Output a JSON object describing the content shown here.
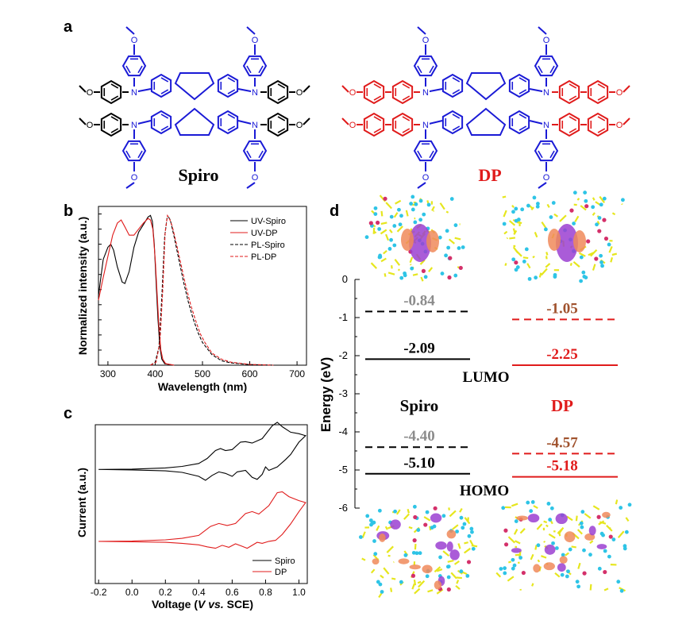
{
  "panel_labels": {
    "a": "a",
    "b": "b",
    "c": "c",
    "d": "d"
  },
  "molecules": {
    "spiro_name": "Spiro",
    "dp_name": "DP",
    "spiro_color": "#1a1ad6",
    "dp_color": "#e01b1b",
    "atom_O": "O",
    "atom_N": "N"
  },
  "chart_data": [
    {
      "id": "b",
      "type": "line",
      "xlabel": "Wavelength (nm)",
      "ylabel": "Normalized intensity (a.u.)",
      "xlim": [
        280,
        720
      ],
      "ylim": [
        0,
        1.05
      ],
      "xticks": [
        300,
        400,
        500,
        600,
        700
      ],
      "legend_position": "top-right",
      "series": [
        {
          "name": "UV-Spiro",
          "color": "#000000",
          "dash": "solid",
          "points": [
            [
              280,
              0.46
            ],
            [
              290,
              0.7
            ],
            [
              300,
              0.78
            ],
            [
              306,
              0.8
            ],
            [
              312,
              0.76
            ],
            [
              320,
              0.65
            ],
            [
              330,
              0.55
            ],
            [
              336,
              0.54
            ],
            [
              345,
              0.62
            ],
            [
              355,
              0.78
            ],
            [
              365,
              0.88
            ],
            [
              375,
              0.93
            ],
            [
              385,
              0.98
            ],
            [
              390,
              0.99
            ],
            [
              394,
              0.95
            ],
            [
              398,
              0.8
            ],
            [
              402,
              0.55
            ],
            [
              406,
              0.3
            ],
            [
              410,
              0.12
            ],
            [
              414,
              0.04
            ],
            [
              420,
              0.01
            ],
            [
              440,
              0
            ]
          ]
        },
        {
          "name": "UV-DP",
          "color": "#e01b1b",
          "dash": "solid",
          "points": [
            [
              280,
              0.43
            ],
            [
              290,
              0.58
            ],
            [
              300,
              0.72
            ],
            [
              310,
              0.86
            ],
            [
              320,
              0.94
            ],
            [
              328,
              0.96
            ],
            [
              335,
              0.92
            ],
            [
              345,
              0.86
            ],
            [
              355,
              0.86
            ],
            [
              365,
              0.9
            ],
            [
              375,
              0.94
            ],
            [
              385,
              0.97
            ],
            [
              390,
              0.96
            ],
            [
              395,
              0.9
            ],
            [
              400,
              0.7
            ],
            [
              404,
              0.48
            ],
            [
              408,
              0.25
            ],
            [
              412,
              0.1
            ],
            [
              416,
              0.04
            ],
            [
              422,
              0.01
            ],
            [
              440,
              0
            ]
          ]
        },
        {
          "name": "PL-Spiro",
          "color": "#000000",
          "dash": "dashed",
          "points": [
            [
              390,
              0
            ],
            [
              400,
              0.02
            ],
            [
              408,
              0.12
            ],
            [
              414,
              0.45
            ],
            [
              420,
              0.85
            ],
            [
              425,
              0.97
            ],
            [
              428,
              0.98
            ],
            [
              432,
              0.96
            ],
            [
              440,
              0.85
            ],
            [
              450,
              0.7
            ],
            [
              460,
              0.55
            ],
            [
              470,
              0.42
            ],
            [
              480,
              0.31
            ],
            [
              490,
              0.22
            ],
            [
              500,
              0.15
            ],
            [
              520,
              0.07
            ],
            [
              540,
              0.03
            ],
            [
              560,
              0.015
            ],
            [
              600,
              0.004
            ],
            [
              650,
              0
            ]
          ]
        },
        {
          "name": "PL-DP",
          "color": "#e01b1b",
          "dash": "dashed",
          "points": [
            [
              390,
              0
            ],
            [
              402,
              0.02
            ],
            [
              410,
              0.15
            ],
            [
              416,
              0.5
            ],
            [
              421,
              0.88
            ],
            [
              426,
              0.99
            ],
            [
              430,
              0.97
            ],
            [
              436,
              0.92
            ],
            [
              445,
              0.8
            ],
            [
              455,
              0.66
            ],
            [
              465,
              0.52
            ],
            [
              475,
              0.4
            ],
            [
              485,
              0.3
            ],
            [
              495,
              0.21
            ],
            [
              505,
              0.15
            ],
            [
              520,
              0.08
            ],
            [
              540,
              0.04
            ],
            [
              560,
              0.02
            ],
            [
              600,
              0.005
            ],
            [
              650,
              0
            ]
          ]
        }
      ]
    },
    {
      "id": "c",
      "type": "line",
      "xlabel_parts": {
        "pre": "Voltage (",
        "v": "V",
        "mid": " ",
        "vs": "vs.",
        "post": " SCE)"
      },
      "ylabel": "Current (a.u.)",
      "xlim": [
        -0.22,
        1.05
      ],
      "ylim": [
        -1.6,
        1.6
      ],
      "xticks": [
        -0.2,
        0.0,
        0.2,
        0.4,
        0.6,
        0.8,
        1.0
      ],
      "xtick_labels": [
        "-0.2",
        "0.0",
        "0.2",
        "0.4",
        "0.6",
        "0.8",
        "1.0"
      ],
      "legend_position": "bottom-right",
      "series": [
        {
          "name": "Spiro",
          "color": "#000000",
          "offset": 0.7,
          "points": [
            [
              -0.2,
              0
            ],
            [
              0.0,
              0.005
            ],
            [
              0.2,
              0.03
            ],
            [
              0.3,
              0.06
            ],
            [
              0.4,
              0.12
            ],
            [
              0.45,
              0.22
            ],
            [
              0.5,
              0.38
            ],
            [
              0.53,
              0.42
            ],
            [
              0.56,
              0.38
            ],
            [
              0.6,
              0.4
            ],
            [
              0.65,
              0.55
            ],
            [
              0.68,
              0.56
            ],
            [
              0.72,
              0.53
            ],
            [
              0.78,
              0.62
            ],
            [
              0.84,
              0.88
            ],
            [
              0.87,
              0.95
            ],
            [
              0.9,
              0.86
            ],
            [
              0.95,
              0.75
            ],
            [
              1.0,
              0.72
            ],
            [
              1.04,
              0.68
            ],
            [
              1.0,
              0.55
            ],
            [
              0.95,
              0.3
            ],
            [
              0.92,
              0.2
            ],
            [
              0.87,
              0.05
            ],
            [
              0.82,
              -0.02
            ],
            [
              0.8,
              0.05
            ],
            [
              0.78,
              -0.1
            ],
            [
              0.75,
              -0.2
            ],
            [
              0.72,
              -0.16
            ],
            [
              0.68,
              -0.02
            ],
            [
              0.63,
              -0.05
            ],
            [
              0.6,
              -0.14
            ],
            [
              0.56,
              -0.08
            ],
            [
              0.52,
              -0.05
            ],
            [
              0.48,
              -0.12
            ],
            [
              0.44,
              -0.22
            ],
            [
              0.4,
              -0.14
            ],
            [
              0.3,
              -0.06
            ],
            [
              0.2,
              -0.03
            ],
            [
              0.0,
              -0.01
            ],
            [
              -0.2,
              0
            ]
          ]
        },
        {
          "name": "DP",
          "color": "#e01b1b",
          "offset": -0.75,
          "points": [
            [
              -0.2,
              0
            ],
            [
              0.0,
              0.005
            ],
            [
              0.2,
              0.03
            ],
            [
              0.3,
              0.06
            ],
            [
              0.4,
              0.12
            ],
            [
              0.47,
              0.3
            ],
            [
              0.52,
              0.36
            ],
            [
              0.57,
              0.32
            ],
            [
              0.62,
              0.36
            ],
            [
              0.68,
              0.56
            ],
            [
              0.72,
              0.6
            ],
            [
              0.76,
              0.55
            ],
            [
              0.82,
              0.72
            ],
            [
              0.87,
              0.98
            ],
            [
              0.9,
              1.0
            ],
            [
              0.94,
              0.9
            ],
            [
              1.0,
              0.82
            ],
            [
              1.04,
              0.78
            ],
            [
              1.0,
              0.6
            ],
            [
              0.95,
              0.35
            ],
            [
              0.9,
              0.14
            ],
            [
              0.86,
              0.02
            ],
            [
              0.82,
              0.0
            ],
            [
              0.78,
              -0.04
            ],
            [
              0.75,
              -0.02
            ],
            [
              0.72,
              -0.08
            ],
            [
              0.69,
              -0.14
            ],
            [
              0.66,
              -0.1
            ],
            [
              0.62,
              -0.05
            ],
            [
              0.58,
              -0.12
            ],
            [
              0.54,
              -0.08
            ],
            [
              0.5,
              -0.14
            ],
            [
              0.45,
              -0.11
            ],
            [
              0.4,
              -0.07
            ],
            [
              0.3,
              -0.04
            ],
            [
              0.2,
              -0.02
            ],
            [
              0.0,
              -0.01
            ],
            [
              -0.2,
              0
            ]
          ]
        }
      ]
    },
    {
      "id": "d",
      "type": "energy-level",
      "ylabel": "Energy (eV)",
      "ylim": [
        -6.2,
        0.2
      ],
      "yticks": [
        0,
        -1,
        -2,
        -3,
        -4,
        -5,
        -6
      ],
      "columns": [
        {
          "name": "Spiro",
          "name_color": "#000000",
          "levels": [
            {
              "value": -0.84,
              "label": "-0.84",
              "dash": "dashed",
              "line_color": "#000000",
              "label_color": "#8c8c8c"
            },
            {
              "value": -2.09,
              "label": "-2.09",
              "dash": "solid",
              "line_color": "#000000",
              "label_color": "#000000"
            },
            {
              "value": -4.4,
              "label": "-4.40",
              "dash": "dashed",
              "line_color": "#000000",
              "label_color": "#8c8c8c"
            },
            {
              "value": -5.1,
              "label": "-5.10",
              "dash": "solid",
              "line_color": "#000000",
              "label_color": "#000000"
            }
          ]
        },
        {
          "name": "DP",
          "name_color": "#e01b1b",
          "levels": [
            {
              "value": -1.05,
              "label": "-1.05",
              "dash": "dashed",
              "line_color": "#e01b1b",
              "label_color": "#a0522d"
            },
            {
              "value": -2.25,
              "label": "-2.25",
              "dash": "solid",
              "line_color": "#e01b1b",
              "label_color": "#e01b1b"
            },
            {
              "value": -4.57,
              "label": "-4.57",
              "dash": "dashed",
              "line_color": "#e01b1b",
              "label_color": "#a0522d"
            },
            {
              "value": -5.18,
              "label": "-5.18",
              "dash": "solid",
              "line_color": "#e01b1b",
              "label_color": "#e01b1b"
            }
          ]
        }
      ],
      "annotations": {
        "lumo": "LUMO",
        "homo": "HOMO"
      },
      "orbital_colors": {
        "carbon": "#e6e61e",
        "hydrogen": "#2ec4e6",
        "oxygen": "#d4306a",
        "lobe_pos": "#9b3fd1",
        "lobe_neg": "#f08a5a"
      }
    }
  ]
}
